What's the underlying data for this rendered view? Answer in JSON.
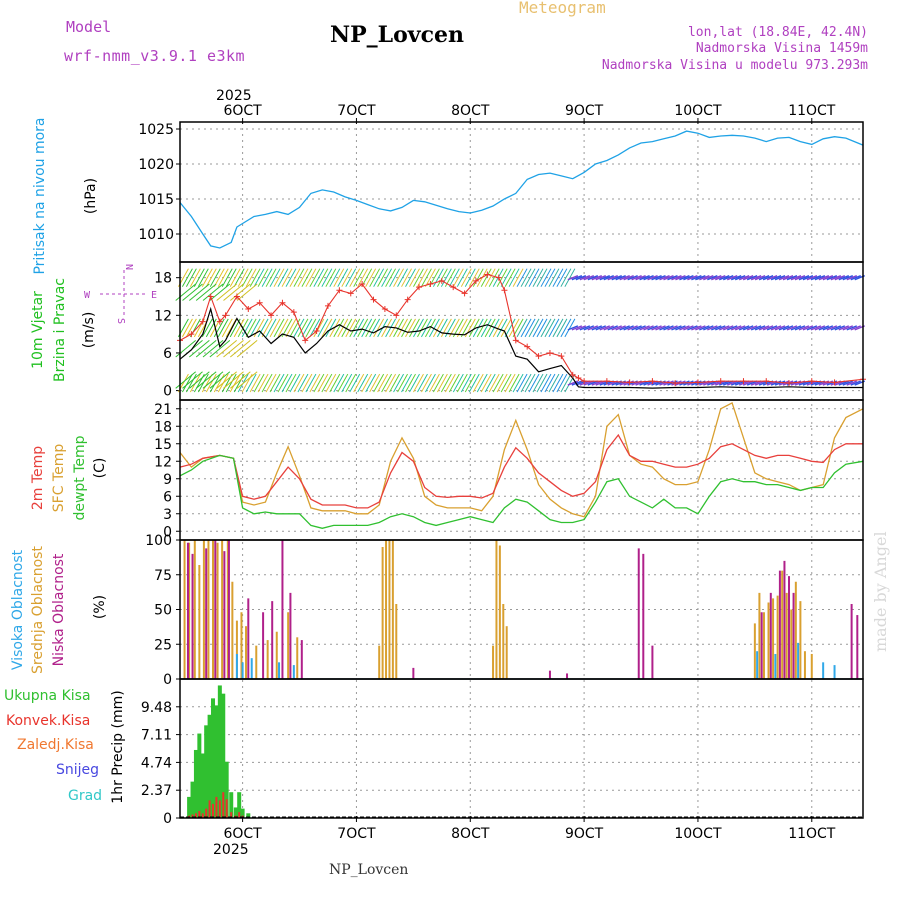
{
  "header": {
    "model_label": "Model",
    "model_name": "wrf-nmm_v3.9.1 e3km",
    "title": "NP_Lovcen",
    "meteogram_label": "Meteogram",
    "lonlat": "lon,lat (18.84E, 42.4N)",
    "altitude": "Nadmorska Visina 1459m",
    "model_altitude": "Nadmorska Visina u modelu 973.293m",
    "footer_station": "NP_Lovcen",
    "credit": "made by Angel"
  },
  "colors": {
    "pressure": "#1fa2e6",
    "wind_speed": "#000000",
    "gust": "#e8342c",
    "temp2m": "#e8403c",
    "sfc_temp": "#d9a030",
    "dewpt": "#30c030",
    "cloud_high": "#30a8e8",
    "cloud_mid": "#d9a030",
    "cloud_low": "#b0208a",
    "precip_total": "#30c030",
    "precip_conv": "#e8342c",
    "precip_frz": "#f07830",
    "precip_snow": "#4848e0",
    "precip_grad": "#30c8c8",
    "wind_label": "#20c020",
    "compass": "#b040c0"
  },
  "chart_data": {
    "type": "meteogram",
    "x_unit": "day of October 2025",
    "x_range": [
      5.45,
      11.45
    ],
    "top_ticks": [
      "6OCT",
      "7OCT",
      "8OCT",
      "9OCT",
      "10OCT",
      "11OCT"
    ],
    "top_year": "2025",
    "bottom_ticks": [
      "6OCT",
      "7OCT",
      "8OCT",
      "9OCT",
      "10OCT",
      "11OCT"
    ],
    "bottom_year": "2025",
    "pressure": {
      "ylabel_1": "Pritisak na nivou mora",
      "ylabel_2": "(hPa)",
      "ylim": [
        1006,
        1026
      ],
      "yticks": [
        "1010",
        "1015",
        "1020",
        "1025"
      ],
      "x": [
        5.45,
        5.55,
        5.65,
        5.72,
        5.8,
        5.9,
        5.95,
        6.0,
        6.1,
        6.2,
        6.3,
        6.4,
        6.5,
        6.6,
        6.7,
        6.8,
        6.9,
        7.0,
        7.1,
        7.2,
        7.3,
        7.4,
        7.5,
        7.6,
        7.7,
        7.8,
        7.9,
        8.0,
        8.1,
        8.2,
        8.3,
        8.4,
        8.5,
        8.6,
        8.7,
        8.8,
        8.9,
        9.0,
        9.1,
        9.2,
        9.3,
        9.4,
        9.5,
        9.6,
        9.7,
        9.8,
        9.9,
        10.0,
        10.1,
        10.2,
        10.3,
        10.4,
        10.5,
        10.6,
        10.7,
        10.8,
        10.9,
        11.0,
        11.1,
        11.2,
        11.3,
        11.45
      ],
      "values": [
        1014.5,
        1012.5,
        1010,
        1008.3,
        1008,
        1008.8,
        1011,
        1011.5,
        1012.5,
        1012.8,
        1013.2,
        1012.8,
        1013.8,
        1015.8,
        1016.3,
        1016,
        1015.3,
        1014.8,
        1014.2,
        1013.6,
        1013.3,
        1013.8,
        1014.8,
        1014.6,
        1014.1,
        1013.6,
        1013.2,
        1013,
        1013.4,
        1014,
        1015,
        1015.8,
        1017.8,
        1018.5,
        1018.7,
        1018.3,
        1017.9,
        1018.8,
        1020,
        1020.5,
        1021.3,
        1022.3,
        1023,
        1023.2,
        1023.6,
        1024,
        1024.7,
        1024.4,
        1023.8,
        1024,
        1024.1,
        1024,
        1023.7,
        1023.2,
        1023.7,
        1023.8,
        1023.2,
        1022.8,
        1023.6,
        1023.9,
        1023.7,
        1022.7
      ]
    },
    "wind": {
      "ylabel_1": "10m Vjetar",
      "ylabel_2": "Brzina i Pravac",
      "ylabel_3": "(m/s)",
      "compass_n": "N",
      "compass_s": "S",
      "compass_w": "W",
      "compass_e": "E",
      "ylim": [
        -1.5,
        20.5
      ],
      "yticks": [
        "0",
        "6",
        "12",
        "18"
      ],
      "x": [
        5.45,
        5.55,
        5.65,
        5.72,
        5.8,
        5.85,
        5.95,
        6.05,
        6.15,
        6.25,
        6.35,
        6.45,
        6.55,
        6.65,
        6.75,
        6.85,
        6.95,
        7.05,
        7.15,
        7.25,
        7.35,
        7.45,
        7.55,
        7.65,
        7.75,
        7.85,
        7.95,
        8.05,
        8.15,
        8.25,
        8.3,
        8.4,
        8.5,
        8.6,
        8.7,
        8.8,
        8.9,
        8.95,
        9.0,
        9.2,
        9.4,
        9.6,
        9.8,
        10.0,
        10.2,
        10.4,
        10.6,
        10.8,
        11.0,
        11.2,
        11.45
      ],
      "speed": [
        5,
        6.5,
        9,
        13,
        7,
        8,
        11.5,
        8.5,
        9.5,
        7.5,
        9,
        8.5,
        6,
        7.5,
        9.5,
        10.5,
        9.5,
        9.8,
        9.2,
        10.2,
        10,
        9.3,
        9.5,
        10.2,
        9.2,
        9,
        8.9,
        10,
        10.5,
        9.8,
        9.5,
        5.5,
        5,
        3,
        3.5,
        4,
        2,
        0.6,
        0.5,
        0.5,
        0.5,
        0.4,
        0.5,
        0.5,
        0.6,
        0.5,
        0.5,
        0.6,
        0.5,
        0.5,
        0.5
      ],
      "gust": [
        8,
        9,
        11,
        15,
        11,
        12,
        15,
        13,
        14,
        12,
        14,
        12.5,
        8,
        9.5,
        13.5,
        16,
        15.5,
        17,
        14.5,
        13,
        12,
        14.5,
        16.5,
        17,
        17.5,
        16.5,
        15.5,
        17.5,
        18.5,
        18,
        16,
        8,
        7,
        5.5,
        6,
        5.5,
        2.5,
        2,
        1.5,
        1.5,
        1.3,
        1.5,
        1.2,
        1.3,
        1.5,
        1.5,
        1.5,
        1.2,
        1.5,
        1.3,
        1.8
      ]
    },
    "temperature": {
      "ylabel_1": "2m Temp",
      "ylabel_2": "SFC Temp",
      "ylabel_3": "dewpt Temp",
      "ylabel_4": "(C)",
      "ylim": [
        -1.5,
        22.5
      ],
      "yticks": [
        "0",
        "3",
        "6",
        "9",
        "12",
        "15",
        "18",
        "21"
      ],
      "x": [
        5.45,
        5.55,
        5.65,
        5.8,
        5.92,
        6.0,
        6.1,
        6.2,
        6.3,
        6.4,
        6.5,
        6.6,
        6.7,
        6.8,
        6.9,
        7.0,
        7.1,
        7.2,
        7.3,
        7.4,
        7.5,
        7.6,
        7.7,
        7.8,
        7.9,
        8.0,
        8.1,
        8.2,
        8.3,
        8.4,
        8.5,
        8.6,
        8.7,
        8.8,
        8.9,
        9.0,
        9.1,
        9.2,
        9.3,
        9.4,
        9.5,
        9.6,
        9.7,
        9.8,
        9.9,
        10.0,
        10.1,
        10.2,
        10.3,
        10.4,
        10.5,
        10.6,
        10.7,
        10.8,
        10.9,
        11.0,
        11.1,
        11.2,
        11.3,
        11.45
      ],
      "t2m": [
        11,
        11.5,
        12.5,
        13,
        12.5,
        6,
        5.5,
        6,
        8.5,
        11,
        9,
        5.5,
        4.5,
        4.5,
        4.5,
        4,
        4,
        5,
        10,
        13.5,
        12,
        7.5,
        6,
        5.8,
        6,
        6,
        5.7,
        6.5,
        11,
        14.3,
        12.5,
        10,
        8.5,
        7,
        6,
        6.5,
        8.5,
        14,
        16.5,
        13,
        12,
        12,
        11.5,
        11,
        11,
        11.5,
        12.5,
        14.5,
        15,
        14,
        13,
        12.5,
        13,
        13,
        12.5,
        12,
        11.8,
        14,
        15,
        15
      ],
      "sfc": [
        13.5,
        11,
        12.5,
        13,
        12.5,
        5,
        4.5,
        5,
        10,
        14.5,
        9.5,
        4,
        3.5,
        3.5,
        3.5,
        3,
        3,
        4.5,
        12,
        16,
        12.5,
        6,
        4.5,
        4,
        4,
        4,
        3.5,
        6,
        14,
        19,
        14,
        8,
        5.5,
        4,
        3,
        2.5,
        6,
        18,
        20,
        13,
        11.5,
        11,
        9,
        8,
        8,
        8.5,
        14,
        21,
        22,
        16,
        10,
        9,
        8.5,
        8,
        7,
        7.5,
        8,
        16,
        19.5,
        21
      ],
      "dewpt": [
        9.5,
        10.5,
        12,
        13,
        12.5,
        4,
        3,
        3.3,
        3,
        3,
        3,
        1,
        0.5,
        1,
        1,
        1,
        1,
        1.5,
        2.5,
        3,
        2.5,
        1.5,
        1,
        1.5,
        2,
        2.5,
        2,
        1.5,
        4,
        5.5,
        5,
        3.5,
        2,
        1.5,
        1.5,
        2,
        5,
        8.5,
        9,
        6,
        5,
        4,
        5.5,
        4,
        4,
        3,
        6,
        8.5,
        9,
        8.5,
        8.5,
        8,
        8,
        7.5,
        7,
        7.5,
        7.5,
        10,
        11.5,
        12
      ]
    },
    "clouds": {
      "ylabel_1": "Visoka Oblacnost",
      "ylabel_2": "Srednja Oblacnost",
      "ylabel_3": "Niska Oblacnost",
      "ylabel_4": "(%)",
      "ylim": [
        0,
        100
      ],
      "yticks": [
        "0",
        "25",
        "50",
        "75",
        "100"
      ],
      "mid_x": [
        5.49,
        5.53,
        5.58,
        5.62,
        5.66,
        5.7,
        5.74,
        5.78,
        5.82,
        5.87,
        5.91,
        5.95,
        5.99,
        6.03,
        6.12,
        6.22,
        6.3,
        6.4,
        6.48,
        7.2,
        7.23,
        7.26,
        7.29,
        7.32,
        7.35,
        8.2,
        8.23,
        8.26,
        8.29,
        8.32,
        10.5,
        10.54,
        10.58,
        10.62,
        10.66,
        10.7,
        10.74,
        10.78,
        10.82,
        10.86,
        10.9,
        10.94,
        11.0
      ],
      "mid_v": [
        100,
        98,
        100,
        82,
        100,
        100,
        100,
        98,
        100,
        100,
        70,
        42,
        48,
        38,
        24,
        28,
        34,
        48,
        30,
        24,
        95,
        100,
        100,
        100,
        54,
        24,
        100,
        96,
        54,
        38,
        40,
        62,
        48,
        55,
        58,
        60,
        78,
        62,
        50,
        70,
        56,
        20,
        18
      ],
      "low_x": [
        5.52,
        5.56,
        5.68,
        5.76,
        5.84,
        5.88,
        6.05,
        6.18,
        6.26,
        6.35,
        6.42,
        6.52,
        7.5,
        8.7,
        8.85,
        9.48,
        9.52,
        9.6,
        10.56,
        10.64,
        10.72,
        10.76,
        10.8,
        10.84,
        11.35,
        11.4
      ],
      "low_v": [
        98,
        90,
        94,
        100,
        92,
        100,
        58,
        48,
        56,
        100,
        62,
        28,
        8,
        6,
        4,
        94,
        90,
        24,
        48,
        62,
        78,
        85,
        74,
        62,
        54,
        46
      ],
      "high_x": [
        5.95,
        6.0,
        6.08,
        6.32,
        6.45,
        10.52,
        10.68,
        10.88,
        11.1,
        11.2
      ],
      "high_v": [
        18,
        12,
        15,
        12,
        10,
        20,
        18,
        26,
        12,
        10
      ]
    },
    "precip": {
      "ylabel_1": "Ukupna Kisa",
      "ylabel_2": "Konvek.Kisa",
      "ylabel_3": "Zaledj.Kisa",
      "ylabel_4": "Snijeg",
      "ylabel_5": "Grad",
      "ylabel_unit": "1hr Precip (mm)",
      "ylim": [
        0,
        11.85
      ],
      "yticks": [
        "0",
        "2.37",
        "4.74",
        "7.11",
        "9.48"
      ],
      "x": [
        5.53,
        5.56,
        5.59,
        5.62,
        5.65,
        5.68,
        5.71,
        5.74,
        5.77,
        5.8,
        5.83,
        5.86,
        5.9,
        5.94,
        5.97,
        6.0,
        6.05
      ],
      "total": [
        1.8,
        3.1,
        5.8,
        7.2,
        5.5,
        7.9,
        8.8,
        10.2,
        9.6,
        11.3,
        10.6,
        4.8,
        2.2,
        0.9,
        2.2,
        0.8,
        0.4
      ],
      "conv": [
        0.2,
        0.3,
        0.4,
        0.6,
        0.4,
        0.8,
        1.5,
        1.2,
        1.8,
        1.5,
        2.2,
        1.6,
        0.5,
        0.2,
        0.5,
        0.2,
        0.1
      ]
    }
  }
}
